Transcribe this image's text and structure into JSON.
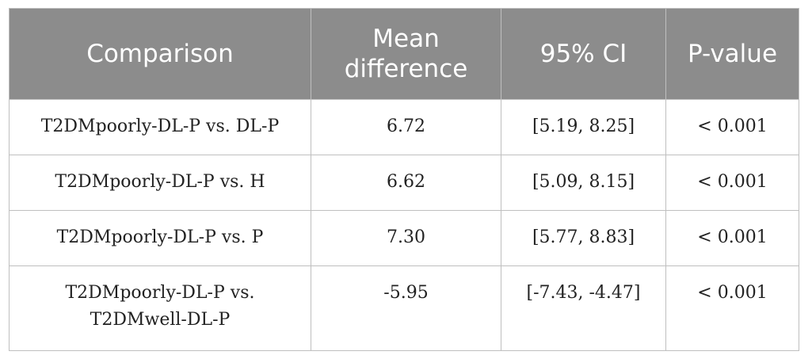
{
  "table": {
    "headers": [
      "Comparison",
      "Mean difference",
      "95% CI",
      "P-value"
    ],
    "rows": [
      {
        "comparison": "T2DMpoorly-DL-P vs. DL-P",
        "mean_difference": "6.72",
        "ci": "[5.19, 8.25]",
        "p_value": "< 0.001"
      },
      {
        "comparison": "T2DMpoorly-DL-P vs. H",
        "mean_difference": "6.62",
        "ci": "[5.09, 8.15]",
        "p_value": "< 0.001"
      },
      {
        "comparison": "T2DMpoorly-DL-P vs. P",
        "mean_difference": "7.30",
        "ci": "[5.77, 8.83]",
        "p_value": "< 0.001"
      },
      {
        "comparison": "T2DMpoorly-DL-P vs. T2DMwell-DL-P",
        "mean_difference": "-5.95",
        "ci": "[-7.43, -4.47]",
        "p_value": "< 0.001"
      }
    ]
  }
}
